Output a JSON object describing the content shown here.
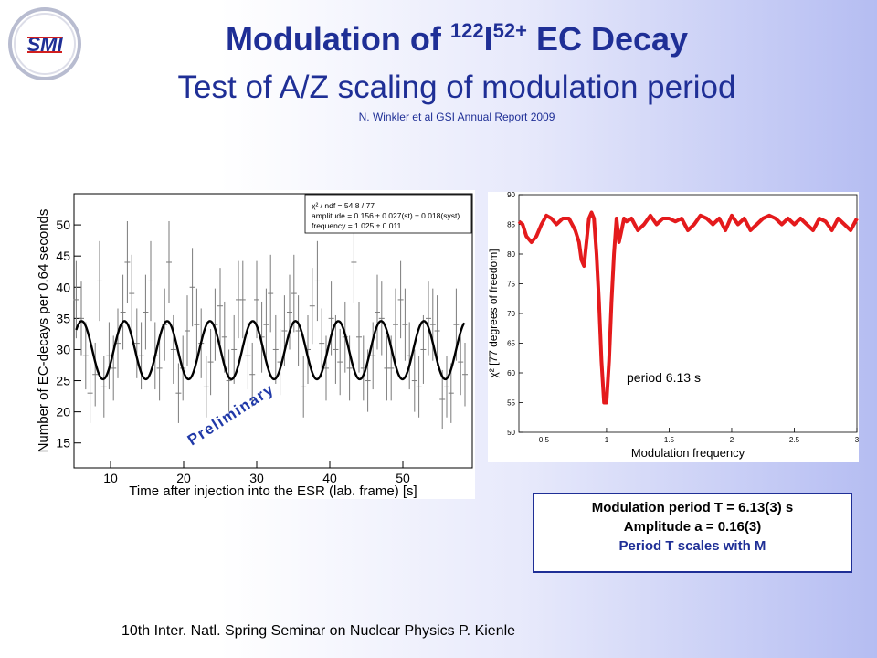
{
  "header": {
    "title_main": "Modulation of ",
    "title_mass": "122",
    "title_element": "I",
    "title_charge": "52+",
    "title_rest": " EC Decay",
    "subtitle": "Test of A/Z scaling of modulation period",
    "citation": "N. Winkler et al GSI Annual Report 2009"
  },
  "logo": {
    "text": "SMI",
    "color": "#1f2f96",
    "accent": "#d11f1f"
  },
  "colors": {
    "title": "#1f2f96",
    "left_fit": "#000000",
    "right_curve": "#e41a1c",
    "data_points": "#7a7a7a"
  },
  "results_box": {
    "line1": "Modulation period T = 6.13(3) s",
    "line2": "Amplitude a = 0.16(3)",
    "line3": "Period T scales with M"
  },
  "footer": "10th Inter. Natl. Spring Seminar on Nuclear Physics   P. Kienle",
  "chart_data": [
    {
      "type": "scatter",
      "xlabel": "Time after injection into the ESR (lab. frame) [s]",
      "ylabel": "Number of EC-decays per 0.64 seconds",
      "xlim": [
        5,
        59.5
      ],
      "ylim": [
        11,
        55
      ],
      "xticks": [
        10,
        20,
        30,
        40,
        50
      ],
      "yticks": [
        15,
        20,
        25,
        30,
        35,
        40,
        45,
        50
      ],
      "stats_box": [
        "χ² / ndf =   54.8 / 77",
        "amplitude = 0.156 ± 0.027(st) ± 0.018(syst)",
        "frequency = 1.025 ± 0.011"
      ],
      "annotation": "Preliminary",
      "fit": {
        "offset": 29.9,
        "amplitude": 0.156,
        "frequency": 1.025,
        "phase_time": 11.9
      },
      "x": [
        5.3,
        6.0,
        6.6,
        7.2,
        7.9,
        8.5,
        9.1,
        9.8,
        10.4,
        11.0,
        11.7,
        12.3,
        12.9,
        13.6,
        14.2,
        14.8,
        15.5,
        16.1,
        16.7,
        17.4,
        18.0,
        18.6,
        19.3,
        19.9,
        20.5,
        21.2,
        21.8,
        22.4,
        23.1,
        23.7,
        24.3,
        25.0,
        25.6,
        26.2,
        26.9,
        27.5,
        28.1,
        28.8,
        29.4,
        30.0,
        30.7,
        31.3,
        31.9,
        32.6,
        33.2,
        33.8,
        34.5,
        35.1,
        35.7,
        36.4,
        37.0,
        37.6,
        38.3,
        38.9,
        39.5,
        40.2,
        40.8,
        41.4,
        42.1,
        42.7,
        43.3,
        44.0,
        44.6,
        45.2,
        45.9,
        46.5,
        47.1,
        47.8,
        48.4,
        49.0,
        49.7,
        50.3,
        50.9,
        51.6,
        52.2,
        52.8,
        53.5,
        54.1,
        54.7,
        55.4,
        56.0,
        56.6,
        57.3,
        57.9,
        58.5
      ],
      "y": [
        38,
        35,
        29,
        23,
        26,
        41,
        24,
        29,
        27,
        31,
        36,
        44,
        39,
        31,
        29,
        36,
        41,
        29,
        27,
        34,
        44,
        30,
        23,
        27,
        33,
        40,
        34,
        31,
        24,
        28,
        34,
        37,
        32,
        25,
        30,
        38,
        38,
        29,
        26,
        38,
        32,
        34,
        39,
        30,
        28,
        33,
        36,
        39,
        33,
        24,
        30,
        37,
        41,
        31,
        27,
        35,
        30,
        28,
        32,
        27,
        44,
        32,
        27,
        25,
        29,
        36,
        35,
        27,
        27,
        34,
        38,
        34,
        29,
        25,
        24,
        30,
        35,
        34,
        33,
        22,
        24,
        23,
        34,
        28,
        26
      ],
      "yerr": [
        6.2,
        5.9,
        5.4,
        4.8,
        5.1,
        6.4,
        4.9,
        5.4,
        5.2,
        5.6,
        6.0,
        6.6,
        6.2,
        5.6,
        5.4,
        6.0,
        6.4,
        5.4,
        5.2,
        5.8,
        6.6,
        5.5,
        4.8,
        5.2,
        5.7,
        6.3,
        5.8,
        5.6,
        4.9,
        5.3,
        5.8,
        6.1,
        5.7,
        5.0,
        5.5,
        6.2,
        6.2,
        5.4,
        5.1,
        6.2,
        5.7,
        5.8,
        6.2,
        5.5,
        5.3,
        5.7,
        6.0,
        6.2,
        5.7,
        4.9,
        5.5,
        6.1,
        6.4,
        5.6,
        5.2,
        5.9,
        5.5,
        5.3,
        5.7,
        5.2,
        6.6,
        5.7,
        5.2,
        5.0,
        5.4,
        6.0,
        5.9,
        5.2,
        5.2,
        5.8,
        6.2,
        5.8,
        5.4,
        5.0,
        4.9,
        5.5,
        5.9,
        5.8,
        5.7,
        4.7,
        4.9,
        4.8,
        5.8,
        5.3,
        5.1
      ]
    },
    {
      "type": "line",
      "xlabel": "Modulation frequency",
      "ylabel": "χ² [77 degrees of freedom]",
      "xlim": [
        0.3,
        3.0
      ],
      "ylim": [
        50,
        90
      ],
      "xticks": [
        0.5,
        1,
        1.5,
        2,
        2.5,
        3
      ],
      "yticks": [
        50,
        55,
        60,
        65,
        70,
        75,
        80,
        85,
        90
      ],
      "annotation": "period 6.13 s",
      "x": [
        0.3,
        0.33,
        0.36,
        0.4,
        0.44,
        0.48,
        0.52,
        0.56,
        0.6,
        0.65,
        0.7,
        0.75,
        0.78,
        0.8,
        0.82,
        0.84,
        0.86,
        0.88,
        0.9,
        0.92,
        0.94,
        0.96,
        0.98,
        1.0,
        1.02,
        1.04,
        1.06,
        1.08,
        1.1,
        1.12,
        1.14,
        1.16,
        1.2,
        1.25,
        1.3,
        1.35,
        1.4,
        1.45,
        1.5,
        1.55,
        1.6,
        1.65,
        1.7,
        1.75,
        1.8,
        1.85,
        1.9,
        1.95,
        2.0,
        2.05,
        2.1,
        2.15,
        2.2,
        2.25,
        2.3,
        2.35,
        2.4,
        2.45,
        2.5,
        2.55,
        2.6,
        2.65,
        2.7,
        2.75,
        2.8,
        2.85,
        2.9,
        2.95,
        3.0
      ],
      "y": [
        85.5,
        85,
        83,
        82,
        83,
        85,
        86.5,
        86,
        85,
        86,
        86,
        84,
        82,
        79,
        78,
        82,
        86,
        87,
        86,
        80,
        72,
        62,
        55,
        55,
        62,
        72,
        80,
        86,
        82,
        84,
        86,
        85.5,
        86,
        84,
        85,
        86.5,
        85,
        86,
        86,
        85.5,
        86,
        84,
        85,
        86.5,
        86,
        85,
        86,
        84,
        86.5,
        85,
        86,
        84,
        85,
        86,
        86.5,
        86,
        85,
        86,
        85,
        86,
        85,
        84,
        86,
        85.5,
        84,
        86,
        85,
        84,
        86
      ]
    }
  ]
}
